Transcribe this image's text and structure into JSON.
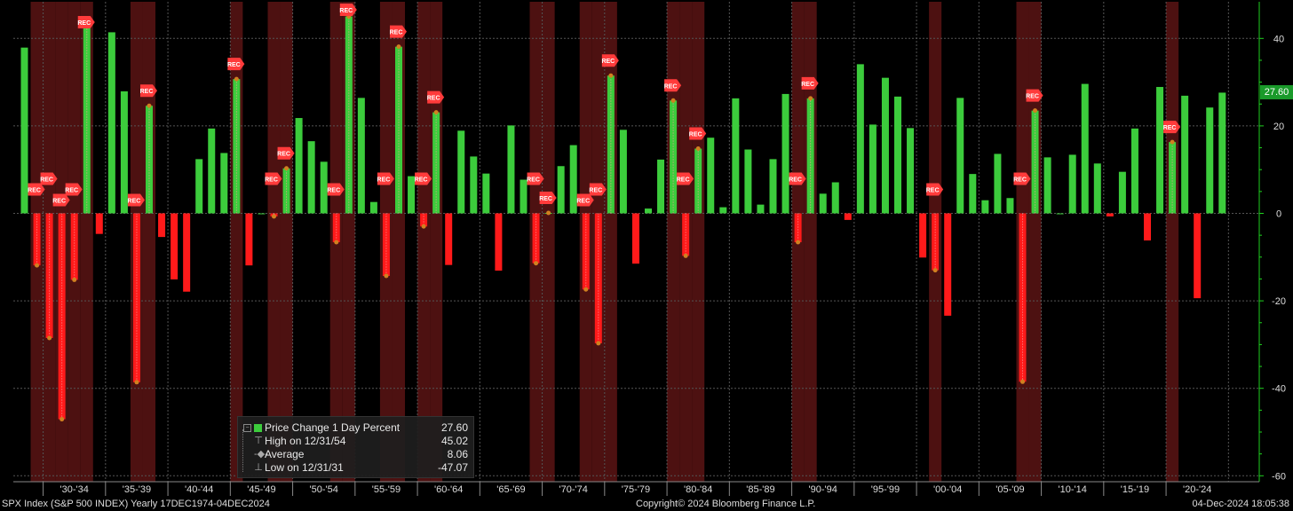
{
  "chart_data": {
    "type": "bar",
    "x": [
      "1928",
      "1929",
      "1930",
      "1931",
      "1932",
      "1933",
      "1934",
      "1935",
      "1936",
      "1937",
      "1938",
      "1939",
      "1940",
      "1941",
      "1942",
      "1943",
      "1944",
      "1945",
      "1946",
      "1947",
      "1948",
      "1949",
      "1950",
      "1951",
      "1952",
      "1953",
      "1954",
      "1955",
      "1956",
      "1957",
      "1958",
      "1959",
      "1960",
      "1961",
      "1962",
      "1963",
      "1964",
      "1965",
      "1966",
      "1967",
      "1968",
      "1969",
      "1970",
      "1971",
      "1972",
      "1973",
      "1974",
      "1975",
      "1976",
      "1977",
      "1978",
      "1979",
      "1980",
      "1981",
      "1982",
      "1983",
      "1984",
      "1985",
      "1986",
      "1987",
      "1988",
      "1989",
      "1990",
      "1991",
      "1992",
      "1993",
      "1994",
      "1995",
      "1996",
      "1997",
      "1998",
      "1999",
      "2000",
      "2001",
      "2002",
      "2003",
      "2004",
      "2005",
      "2006",
      "2007",
      "2008",
      "2009",
      "2010",
      "2011",
      "2012",
      "2013",
      "2014",
      "2015",
      "2016",
      "2017",
      "2018",
      "2019",
      "2020",
      "2021",
      "2022",
      "2023",
      "2024"
    ],
    "values": [
      37.9,
      -11.9,
      -28.5,
      -47.07,
      -15.2,
      44.1,
      -4.7,
      41.4,
      27.9,
      -38.6,
      24.6,
      -5.4,
      -15.1,
      -17.9,
      12.4,
      19.4,
      13.8,
      30.7,
      -11.9,
      0.0,
      -0.7,
      10.3,
      21.8,
      16.5,
      11.8,
      -6.6,
      45.02,
      26.4,
      2.6,
      -14.3,
      38.1,
      8.5,
      -3.0,
      23.1,
      -11.8,
      18.9,
      13.0,
      9.1,
      -13.1,
      20.1,
      7.7,
      -11.4,
      0.1,
      10.8,
      15.6,
      -17.4,
      -29.7,
      31.5,
      19.1,
      -11.5,
      1.1,
      12.3,
      25.8,
      -9.7,
      14.8,
      17.3,
      1.4,
      26.3,
      14.6,
      2.0,
      12.4,
      27.3,
      -6.6,
      26.3,
      4.5,
      7.1,
      -1.5,
      34.1,
      20.3,
      31.0,
      26.7,
      19.5,
      -10.1,
      -13.0,
      -23.4,
      26.4,
      9.0,
      3.0,
      13.6,
      3.5,
      -38.5,
      23.5,
      12.8,
      0.0,
      13.4,
      29.6,
      11.4,
      -0.7,
      9.5,
      19.4,
      -6.2,
      28.9,
      16.3,
      26.9,
      -19.4,
      24.2,
      27.6
    ],
    "recession_years": [
      "1929",
      "1930",
      "1931",
      "1932",
      "1933",
      "1937",
      "1938",
      "1945",
      "1948",
      "1949",
      "1953",
      "1954",
      "1957",
      "1958",
      "1960",
      "1961",
      "1969",
      "1970",
      "1973",
      "1974",
      "1975",
      "1980",
      "1981",
      "1982",
      "1990",
      "1991",
      "2001",
      "2008",
      "2009",
      "2020"
    ],
    "rec_label": "REC",
    "ylim": [
      -62,
      48
    ],
    "yticks": [
      40,
      20,
      0,
      -20,
      -40,
      -60
    ],
    "grid": true,
    "xtick_labels": [
      "'30-'34",
      "'35-'39",
      "'40-'44",
      "'45-'49",
      "'50-'54",
      "'55-'59",
      "'60-'64",
      "'65-'69",
      "'70-'74",
      "'75-'79",
      "'80-'84",
      "'85-'89",
      "'90-'94",
      "'95-'99",
      "'00-'04",
      "'05-'09",
      "'10-'14",
      "'15-'19",
      "'20-'24"
    ],
    "last_value_label": "27.60",
    "colors": {
      "positive": "#3ccc3c",
      "negative": "#ff1a1a",
      "recession": "#5a1414",
      "grid": "#555555",
      "axis": "#1fd11f"
    }
  },
  "legend": {
    "series_label": "Price Change 1 Day Percent",
    "series_value": "27.60",
    "high_label": "High on 12/31/54",
    "high_value": "45.02",
    "avg_label": "Average",
    "avg_value": "8.06",
    "low_label": "Low on 12/31/31",
    "low_value": "-47.07"
  },
  "footer": {
    "left": "SPX Index (S&P 500 INDEX)  Yearly 17DEC1974-04DEC2024",
    "center": "Copyright© 2024 Bloomberg Finance L.P.",
    "right": "04-Dec-2024 18:05:38"
  }
}
